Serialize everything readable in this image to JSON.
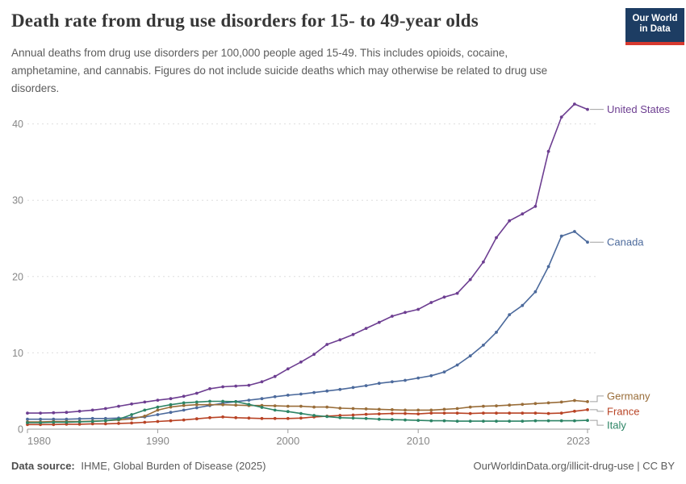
{
  "header": {
    "title": "Death rate from drug use disorders for 15- to 49-year olds",
    "subtitle_lines": [
      "Annual deaths from drug use disorders per 100,000 people aged 15-49. This includes opioids, cocaine,",
      "amphetamine, and cannabis. Figures do not include suicide deaths which may otherwise be related to drug use",
      "disorders."
    ],
    "logo": {
      "line1": "Our World",
      "line2": "in Data",
      "bg_color": "#1d3d63",
      "stripe_color": "#d7392f"
    }
  },
  "footer": {
    "source_label": "Data source:",
    "source_value": "IHME, Global Burden of Disease (2025)",
    "credit": "OurWorldinData.org/illicit-drug-use | CC BY"
  },
  "chart_data": {
    "type": "line",
    "title": "Death rate from drug use disorders for 15- to 49-year olds",
    "xlabel": "",
    "ylabel": "",
    "xlim": [
      1980,
      2023
    ],
    "ylim": [
      0,
      44
    ],
    "grid": "horizontal-dashed",
    "legend_position": "end-of-line-labels",
    "x_ticks": [
      1980,
      1990,
      2000,
      2010,
      2023
    ],
    "y_ticks": [
      0,
      10,
      20,
      30,
      40
    ],
    "x": [
      1980,
      1981,
      1982,
      1983,
      1984,
      1985,
      1986,
      1987,
      1988,
      1989,
      1990,
      1991,
      1992,
      1993,
      1994,
      1995,
      1996,
      1997,
      1998,
      1999,
      2000,
      2001,
      2002,
      2003,
      2004,
      2005,
      2006,
      2007,
      2008,
      2009,
      2010,
      2011,
      2012,
      2013,
      2014,
      2015,
      2016,
      2017,
      2018,
      2019,
      2020,
      2021,
      2022,
      2023
    ],
    "series": [
      {
        "name": "United States",
        "color": "#6D3E91",
        "values": [
          2.1,
          2.1,
          2.15,
          2.2,
          2.35,
          2.5,
          2.7,
          3.0,
          3.3,
          3.55,
          3.8,
          4.0,
          4.3,
          4.7,
          5.3,
          5.55,
          5.65,
          5.75,
          6.2,
          6.9,
          7.9,
          8.8,
          9.8,
          11.1,
          11.7,
          12.4,
          13.2,
          14.0,
          14.8,
          15.3,
          15.7,
          16.6,
          17.3,
          17.8,
          19.6,
          21.9,
          25.1,
          27.3,
          28.2,
          29.2,
          36.4,
          40.9,
          42.6,
          41.9
        ]
      },
      {
        "name": "Canada",
        "color": "#4C6A9C",
        "values": [
          1.3,
          1.3,
          1.3,
          1.3,
          1.35,
          1.4,
          1.4,
          1.45,
          1.5,
          1.6,
          1.9,
          2.2,
          2.5,
          2.8,
          3.1,
          3.4,
          3.6,
          3.8,
          4.0,
          4.25,
          4.45,
          4.6,
          4.8,
          5.0,
          5.2,
          5.45,
          5.7,
          6.0,
          6.2,
          6.4,
          6.7,
          7.0,
          7.5,
          8.4,
          9.6,
          11.0,
          12.7,
          15.0,
          16.2,
          18.0,
          21.3,
          25.3,
          25.9,
          24.5
        ]
      },
      {
        "name": "Germany",
        "color": "#996D39",
        "values": [
          0.95,
          0.95,
          1.0,
          1.0,
          1.0,
          1.05,
          1.1,
          1.2,
          1.35,
          1.7,
          2.5,
          2.9,
          3.1,
          3.2,
          3.2,
          3.2,
          3.15,
          3.1,
          3.1,
          3.05,
          3.0,
          3.0,
          2.9,
          2.9,
          2.75,
          2.7,
          2.65,
          2.6,
          2.55,
          2.5,
          2.5,
          2.5,
          2.6,
          2.7,
          2.9,
          3.0,
          3.05,
          3.15,
          3.25,
          3.35,
          3.45,
          3.55,
          3.75,
          3.6
        ]
      },
      {
        "name": "France",
        "color": "#B84325",
        "values": [
          0.6,
          0.6,
          0.6,
          0.65,
          0.65,
          0.7,
          0.7,
          0.75,
          0.8,
          0.9,
          1.0,
          1.1,
          1.2,
          1.35,
          1.5,
          1.6,
          1.5,
          1.45,
          1.4,
          1.4,
          1.4,
          1.45,
          1.6,
          1.7,
          1.8,
          1.85,
          1.95,
          2.0,
          2.05,
          2.05,
          2.0,
          2.1,
          2.1,
          2.1,
          2.05,
          2.1,
          2.1,
          2.1,
          2.1,
          2.1,
          2.05,
          2.1,
          2.35,
          2.55
        ]
      },
      {
        "name": "Italy",
        "color": "#2C8465",
        "values": [
          0.85,
          0.85,
          0.9,
          0.9,
          0.95,
          1.0,
          1.1,
          1.3,
          1.9,
          2.5,
          2.9,
          3.2,
          3.45,
          3.55,
          3.65,
          3.65,
          3.6,
          3.25,
          2.85,
          2.5,
          2.3,
          2.05,
          1.8,
          1.65,
          1.5,
          1.45,
          1.4,
          1.3,
          1.25,
          1.2,
          1.15,
          1.1,
          1.1,
          1.05,
          1.05,
          1.05,
          1.05,
          1.05,
          1.05,
          1.1,
          1.1,
          1.1,
          1.1,
          1.15
        ]
      }
    ]
  }
}
